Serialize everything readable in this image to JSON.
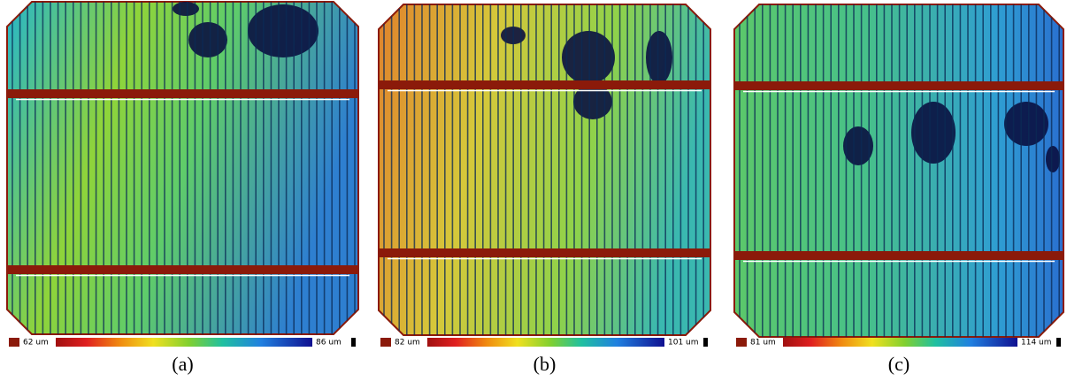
{
  "panels": [
    {
      "caption": "(a)",
      "scale_min": "62 um",
      "scale_max": "86 um"
    },
    {
      "caption": "(b)",
      "scale_min": "82 um",
      "scale_max": "101 um"
    },
    {
      "caption": "(c)",
      "scale_min": "81 um",
      "scale_max": "114 um"
    }
  ]
}
